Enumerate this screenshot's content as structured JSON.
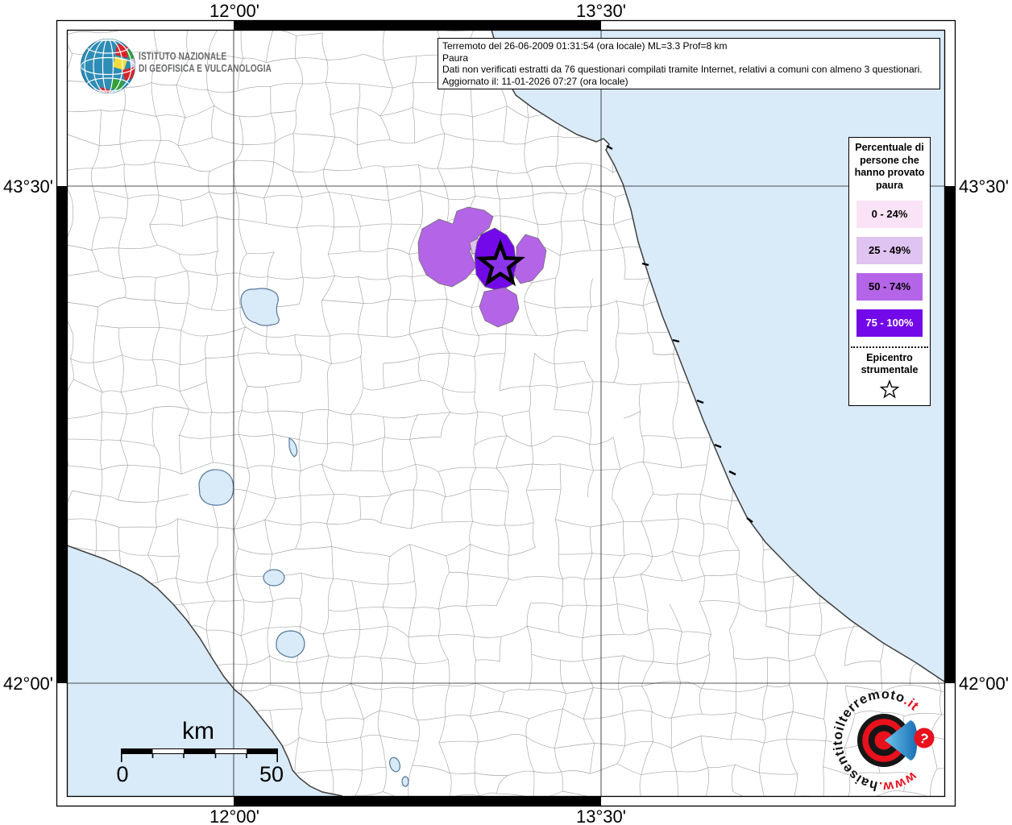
{
  "header": {
    "ingv_line1": "ISTITUTO NAZIONALE",
    "ingv_line2": "DI GEOFISICA E VULCANOLOGIA"
  },
  "info_box": {
    "line1": "Terremoto del 26-06-2009 01:31:54 (ora locale) ML=3.3 Prof=8 km",
    "line2": "Paura",
    "line3": "Dati non verificati estratti da 76 questionari compilati tramite Internet, relativi a comuni con almeno 3 questionari.",
    "line4": "Aggiornato il: 11-01-2026 07:27 (ora locale)"
  },
  "legend": {
    "title": "Percentuale di persone che hanno provato paura",
    "classes": [
      {
        "label": "0 - 24%",
        "color": "#fae3f6",
        "text_color": "#000000"
      },
      {
        "label": "25 - 49%",
        "color": "#dfc3f0",
        "text_color": "#000000"
      },
      {
        "label": "50 - 74%",
        "color": "#b464e6",
        "text_color": "#000000"
      },
      {
        "label": "75 - 100%",
        "color": "#7309e8",
        "text_color": "#ffffff"
      }
    ],
    "epicenter_label": "Epicentro strumentale"
  },
  "axes": {
    "top": [
      "12°00'",
      "13°30'"
    ],
    "bottom": [
      "12°00'",
      "13°30'"
    ],
    "left": [
      "43°30'",
      "42°00'"
    ],
    "right": [
      "43°30'",
      "42°00'"
    ]
  },
  "scale_bar": {
    "unit": "km",
    "start": "0",
    "end": "50"
  },
  "watermark": {
    "www": "www.",
    "name": "haisentitoilterremoto",
    "tld": ".it",
    "question_mark": "?"
  },
  "map": {
    "sea_color": "#d9eaf8",
    "land_color": "#ffffff",
    "municipality_border_color": "#a5a5a5",
    "felt_colors": {
      "c0_24": "#fae3f6",
      "c25_49": "#dfc3f0",
      "c50_74": "#b464e6",
      "c75_100": "#7309e8"
    },
    "epicenter_symbol": "star"
  }
}
